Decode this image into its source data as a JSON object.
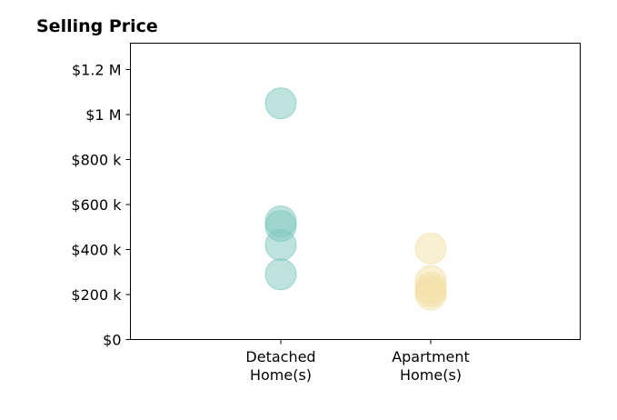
{
  "chart_data": {
    "type": "scatter",
    "title": "Selling Price",
    "xlabel": "",
    "ylabel": "",
    "categories": [
      [
        "Detached",
        "Home(s)"
      ],
      [
        "Apartment",
        "Home(s)"
      ]
    ],
    "ylim": [
      0,
      1200000
    ],
    "y_ticks": [
      {
        "value": 0,
        "label": "$0"
      },
      {
        "value": 200000,
        "label": "$200 k"
      },
      {
        "value": 400000,
        "label": "$400 k"
      },
      {
        "value": 600000,
        "label": "$600 k"
      },
      {
        "value": 800000,
        "label": "$800 k"
      },
      {
        "value": 1000000,
        "label": "$1 M"
      },
      {
        "value": 1200000,
        "label": "$1.2 M"
      }
    ],
    "series": [
      {
        "category_index": 0,
        "color": "#7ec8bf",
        "values": [
          1050000,
          525000,
          505000,
          420000,
          290000
        ]
      },
      {
        "category_index": 1,
        "color": "#f3dfa8",
        "values": [
          405000,
          260000,
          230000,
          215000,
          200000
        ]
      }
    ],
    "grid": false,
    "legend": "none"
  }
}
